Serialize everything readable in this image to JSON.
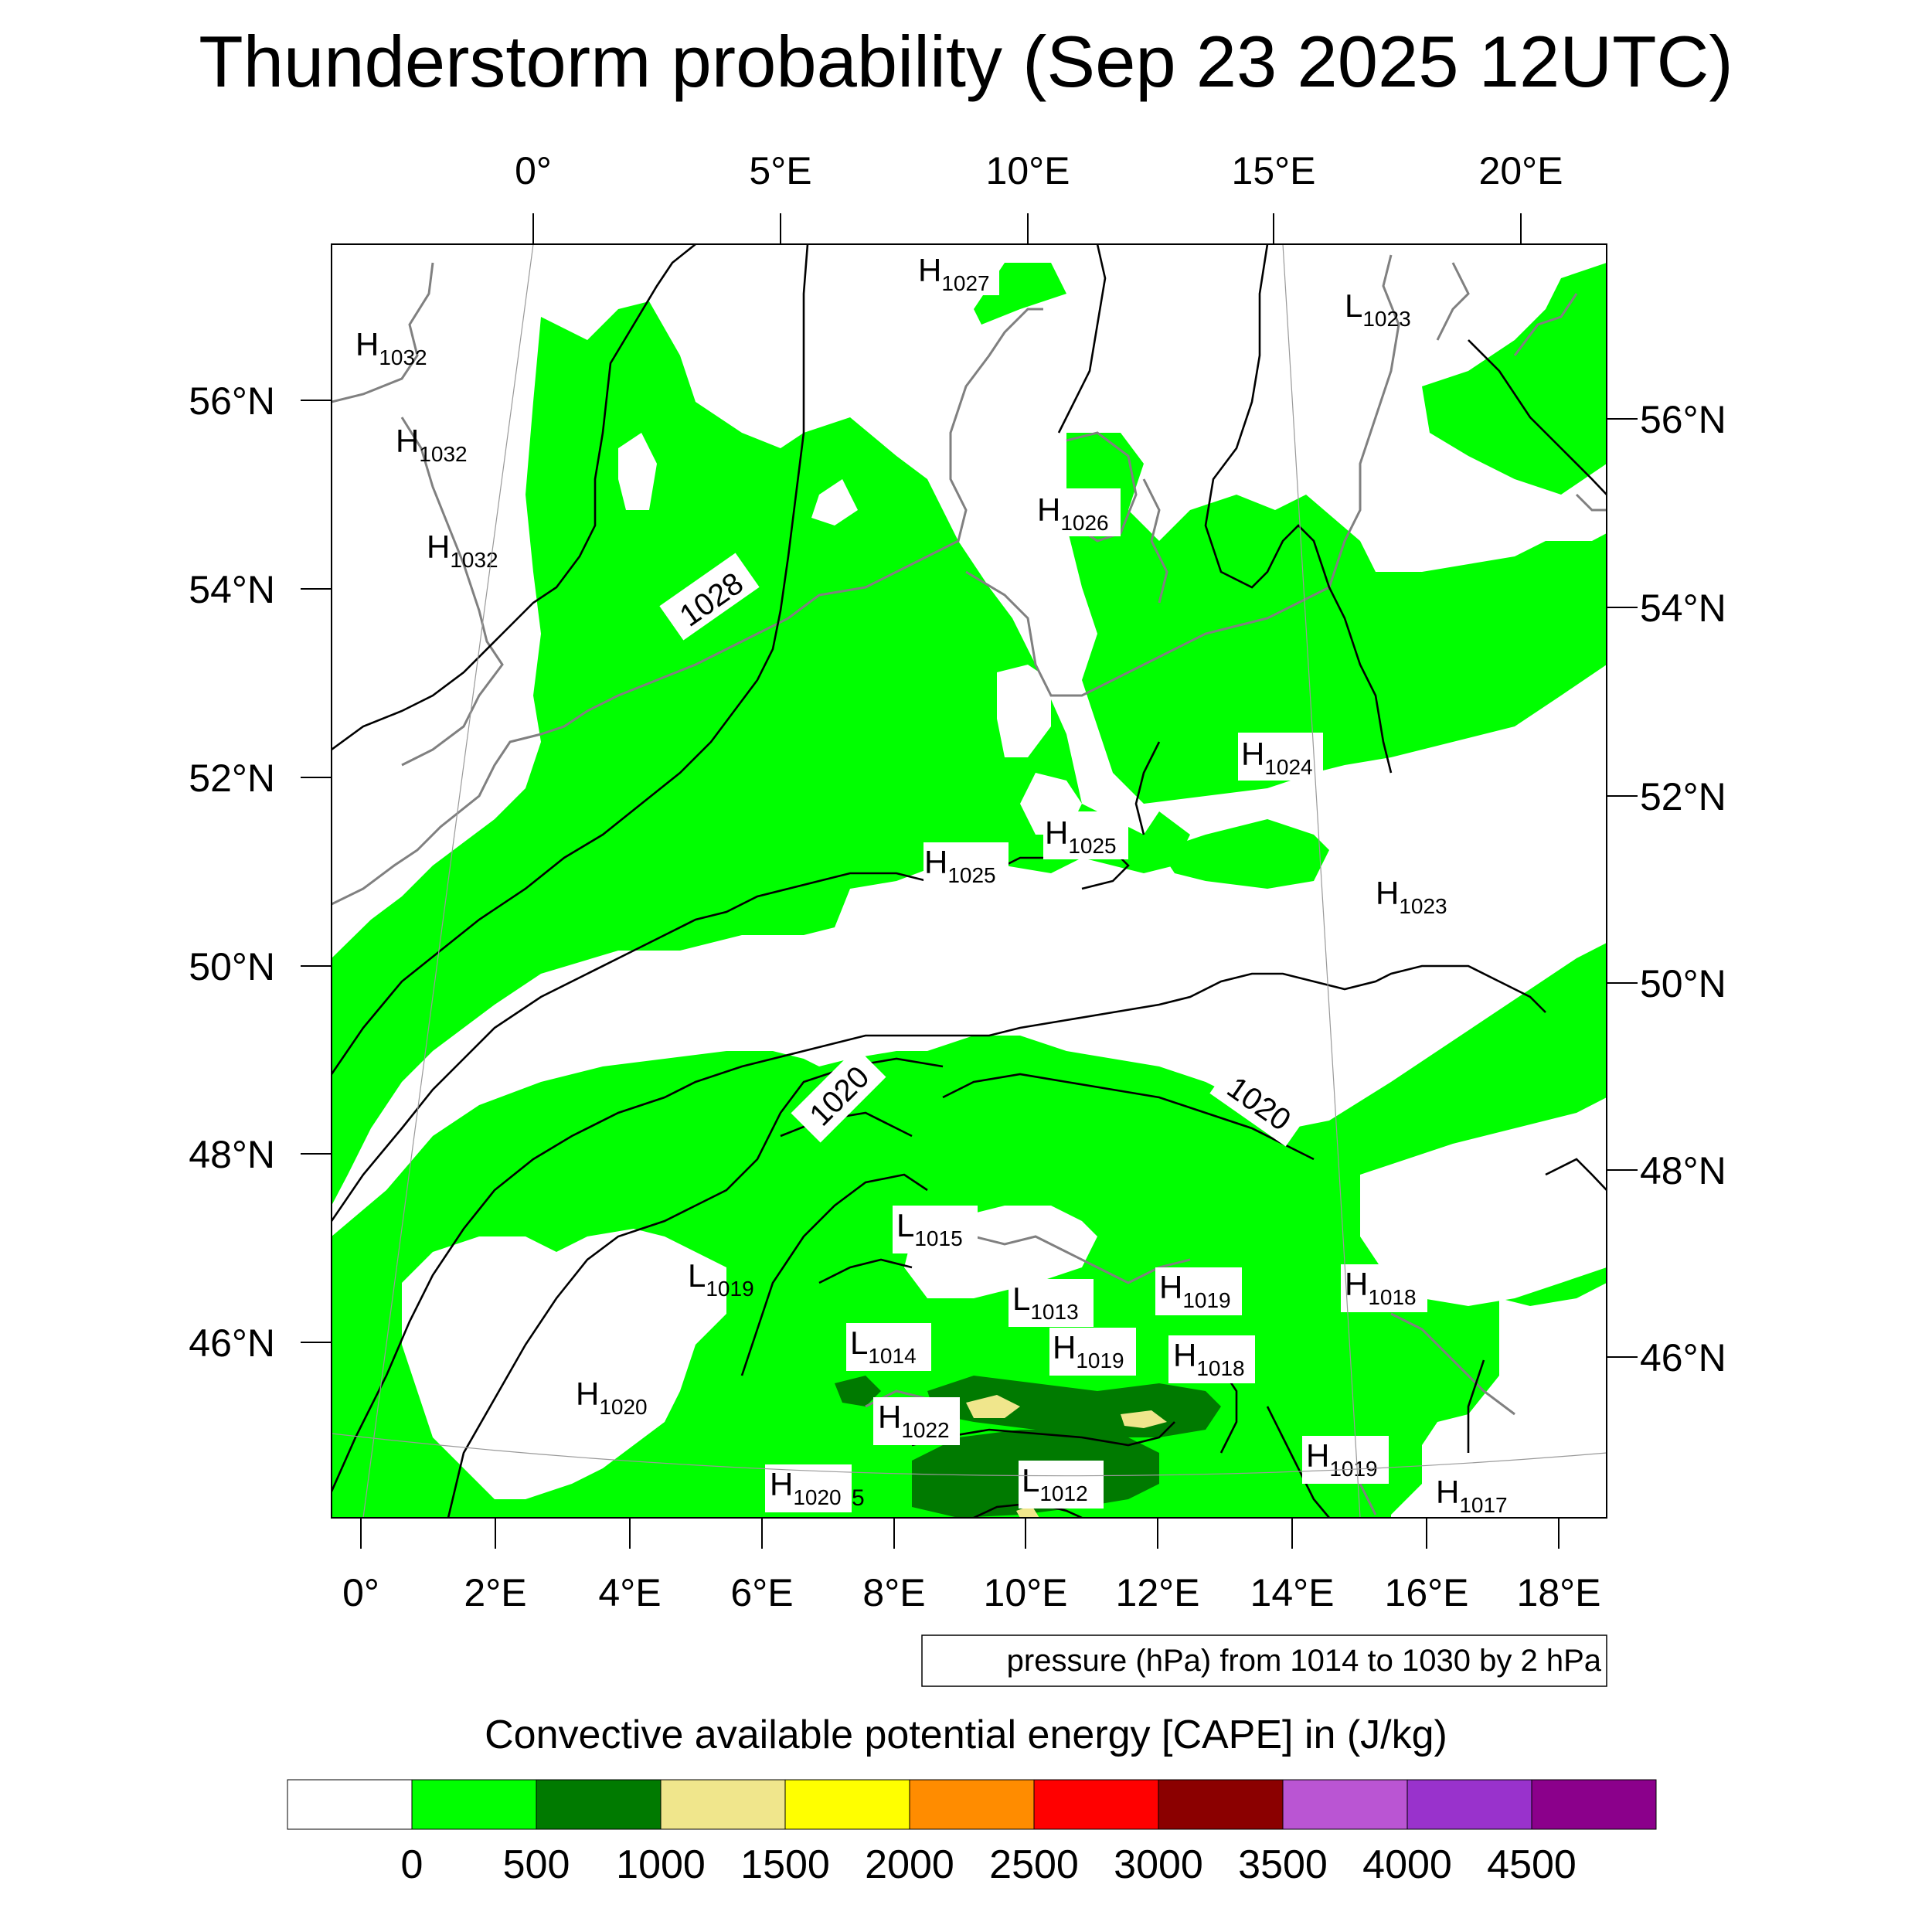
{
  "title": "Thunderstorm probability (Sep 23 2025 12UTC)",
  "top_lon_labels": [
    "0°",
    "5°E",
    "10°E",
    "15°E",
    "20°E"
  ],
  "bottom_lon_labels": [
    "0°",
    "2°E",
    "4°E",
    "6°E",
    "8°E",
    "10°E",
    "12°E",
    "14°E",
    "16°E",
    "18°E"
  ],
  "left_lat_labels": [
    "56°N",
    "54°N",
    "52°N",
    "50°N",
    "48°N",
    "46°N"
  ],
  "right_lat_labels": [
    "56°N",
    "54°N",
    "52°N",
    "50°N",
    "48°N",
    "46°N"
  ],
  "isobar_labels": [
    "1028",
    "1020",
    "1020"
  ],
  "pressure_centers": [
    {
      "type": "H",
      "value": "1032"
    },
    {
      "type": "H",
      "value": "1032"
    },
    {
      "type": "H",
      "value": "1032"
    },
    {
      "type": "H",
      "value": "1027"
    },
    {
      "type": "L",
      "value": "1023"
    },
    {
      "type": "H",
      "value": "1026"
    },
    {
      "type": "H",
      "value": "1024"
    },
    {
      "type": "H",
      "value": "1025"
    },
    {
      "type": "H",
      "value": "1025"
    },
    {
      "type": "H",
      "value": "1023"
    },
    {
      "type": "L",
      "value": "1015"
    },
    {
      "type": "L",
      "value": "1019"
    },
    {
      "type": "L",
      "value": "1013"
    },
    {
      "type": "H",
      "value": "1019"
    },
    {
      "type": "H",
      "value": "1018"
    },
    {
      "type": "L",
      "value": "1014"
    },
    {
      "type": "H",
      "value": "1019"
    },
    {
      "type": "H",
      "value": "1018"
    },
    {
      "type": "H",
      "value": "1020"
    },
    {
      "type": "H",
      "value": "1022"
    },
    {
      "type": "H",
      "value": "1020"
    },
    {
      "type": "L",
      "value": "1012"
    },
    {
      "type": "H",
      "value": "1019"
    },
    {
      "type": "H",
      "value": "1017"
    }
  ],
  "stray_label": "5",
  "contour_info": "pressure (hPa) from 1014 to 1030 by 2 hPa",
  "colorbar": {
    "title": "Convective available potential energy [CAPE] in (J/kg)",
    "colors": [
      "#ffffff",
      "#00ff00",
      "#007a00",
      "#f0e68c",
      "#ffff00",
      "#ff8c00",
      "#ff0000",
      "#8b0000",
      "#ba55d3",
      "#9932cc",
      "#8b008b"
    ],
    "ticks": [
      "0",
      "500",
      "1000",
      "1500",
      "2000",
      "2500",
      "3000",
      "3500",
      "4000",
      "4500"
    ]
  },
  "colors": {
    "cape_low": "#00ff00",
    "cape_mid": "#007a00",
    "cape_high": "#f0e68c",
    "coast": "#808080",
    "isobar": "#000000"
  }
}
